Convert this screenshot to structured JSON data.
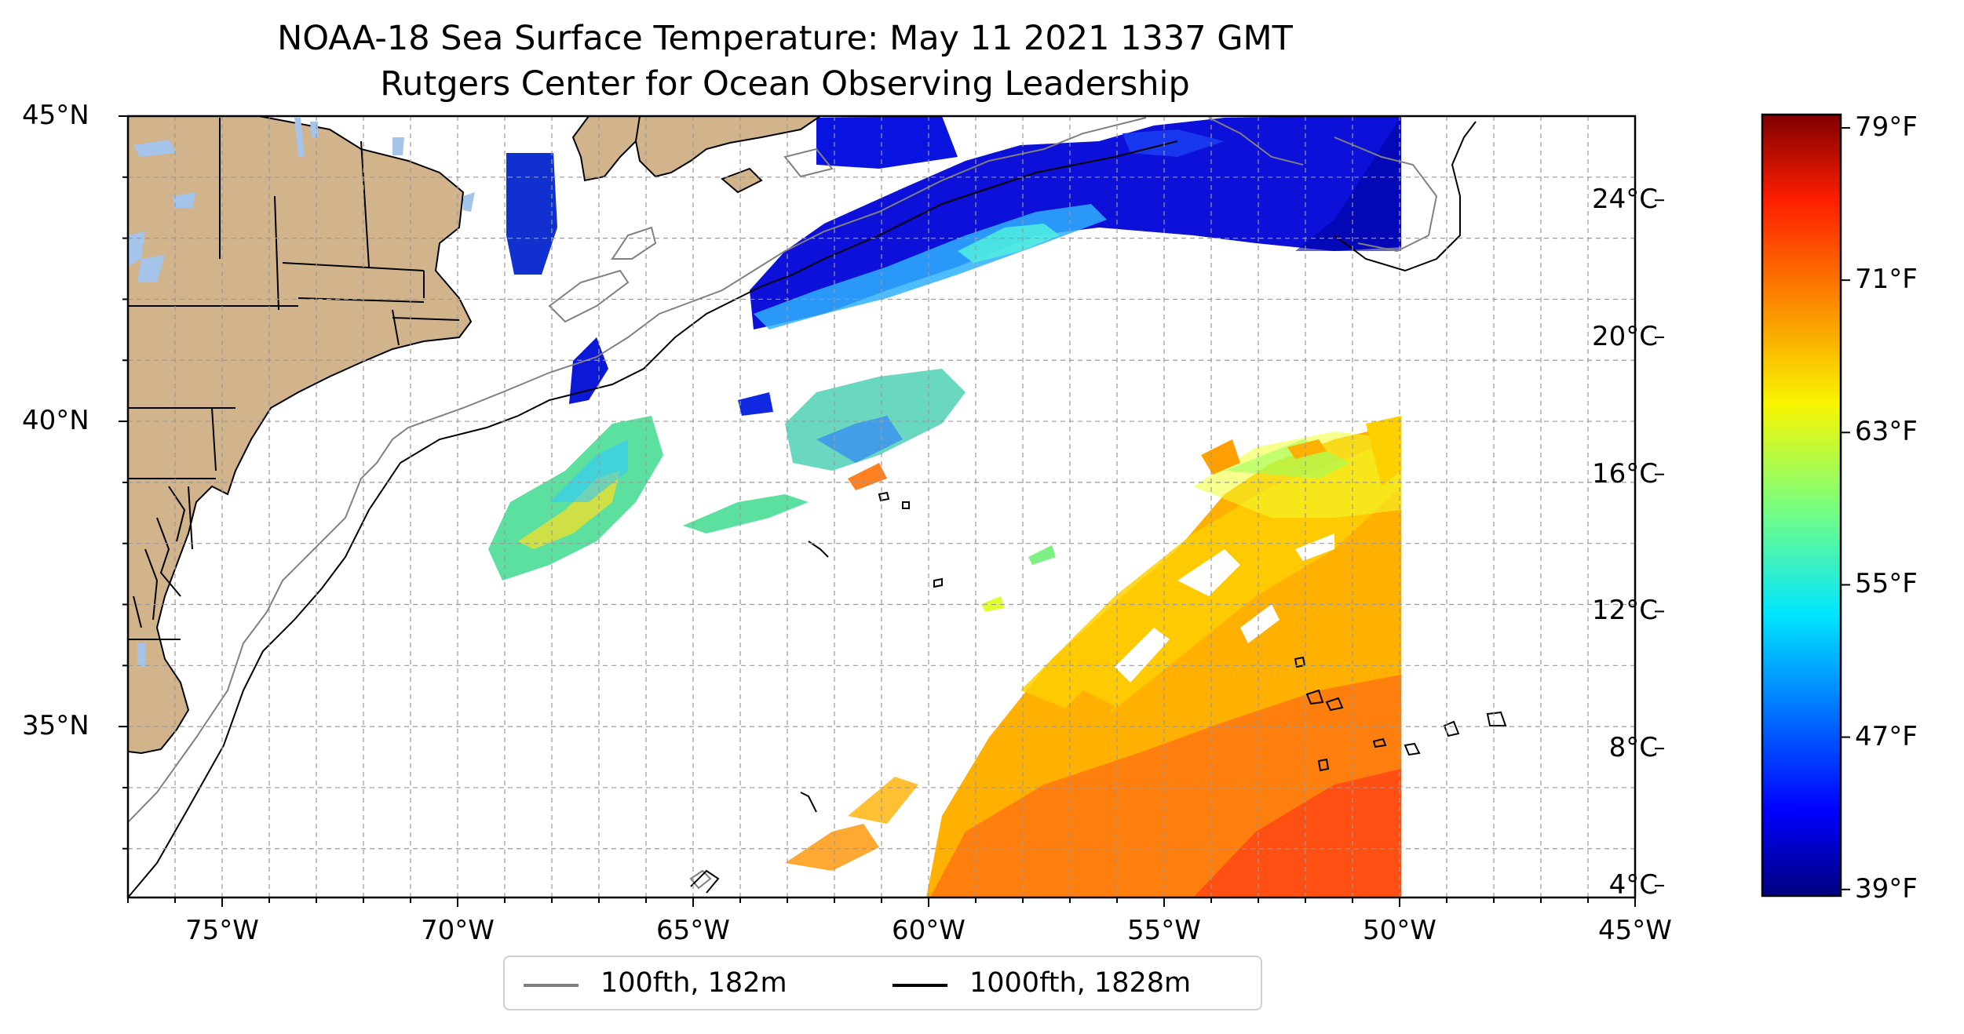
{
  "title": {
    "line1": "NOAA-18 Sea Surface Temperature: May 11 2021 1337 GMT",
    "line2": "Rutgers Center for Ocean Observing Leadership"
  },
  "map": {
    "lon_range": [
      -77,
      -45
    ],
    "lat_range": [
      32.2,
      45
    ],
    "lon_ticks": [
      "75°W",
      "70°W",
      "65°W",
      "60°W",
      "55°W",
      "50°W",
      "45°W"
    ],
    "lat_ticks": [
      "45°N",
      "40°N",
      "35°N"
    ],
    "gridlines": true,
    "land_color": "#d2b48c",
    "lake_color": "#a4c4ea"
  },
  "colorbar": {
    "colormap": "jet",
    "range_celsius": [
      3.7,
      26.5
    ],
    "celsius_ticks": [
      "24°C",
      "20°C",
      "16°C",
      "12°C",
      "8°C",
      "4°C"
    ],
    "fahrenheit_ticks": [
      "79°F",
      "71°F",
      "63°F",
      "55°F",
      "47°F",
      "39°F"
    ]
  },
  "legend": {
    "items": [
      {
        "label": "100fth, 182m",
        "color": "#808080"
      },
      {
        "label": "1000fth, 1828m",
        "color": "#000000"
      }
    ]
  }
}
